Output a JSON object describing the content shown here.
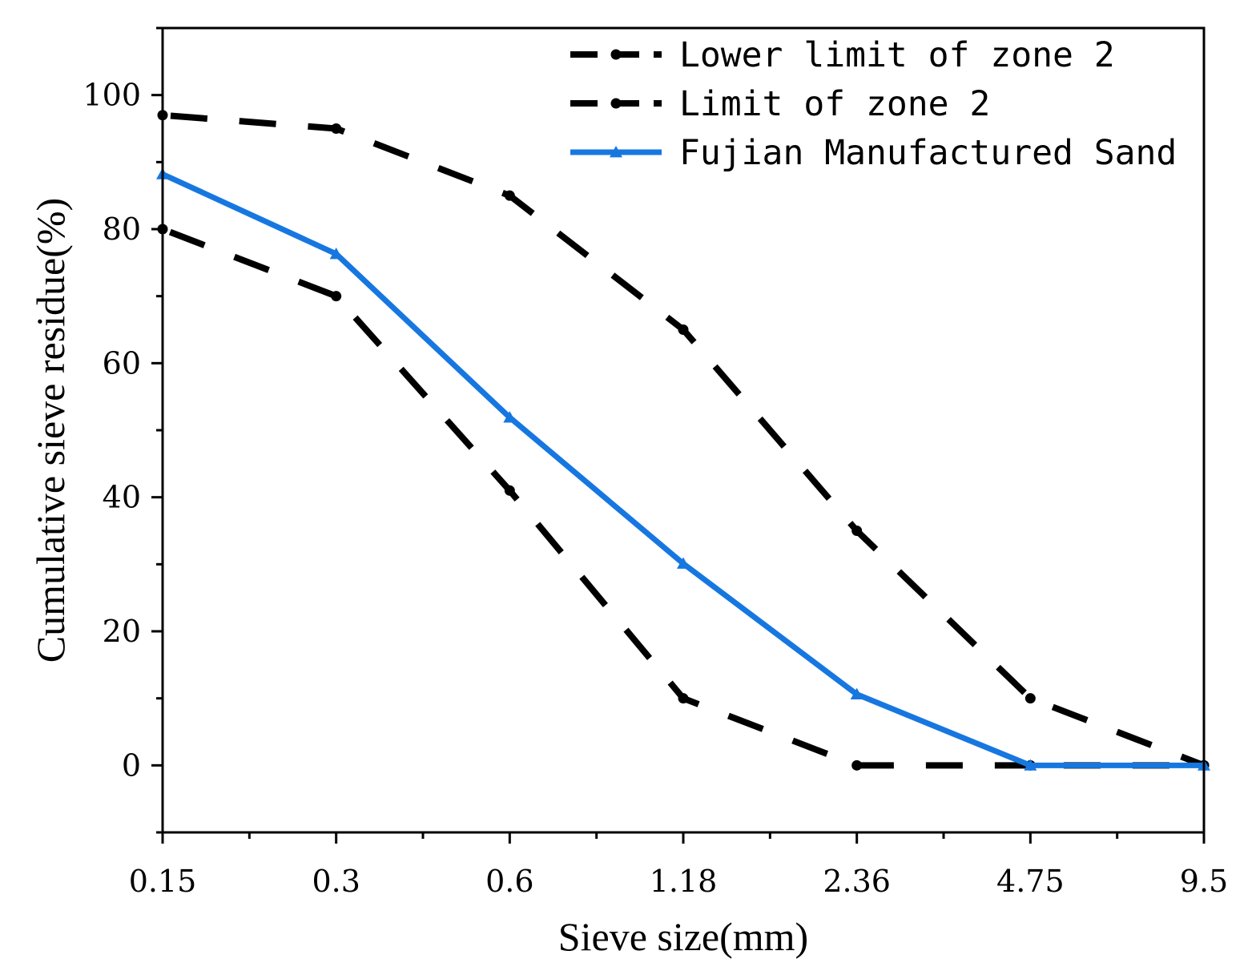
{
  "chart_data": {
    "type": "line",
    "title": "",
    "xlabel": "Sieve size(mm)",
    "ylabel": "Cumulative sieve residue(%)",
    "categories": [
      "0.15",
      "0.3",
      "0.6",
      "1.18",
      "2.36",
      "4.75",
      "9.5"
    ],
    "yticks": [
      0,
      20,
      40,
      60,
      80,
      100
    ],
    "ylim": [
      -10,
      110
    ],
    "grid": false,
    "legend_position": "top-right",
    "series": [
      {
        "name": "Lower limit of zone 2",
        "style": "dashed-dot",
        "marker": "circle",
        "color": "#000000",
        "values": [
          80,
          70,
          41,
          10,
          0,
          0,
          0
        ]
      },
      {
        "name": "Limit of zone 2",
        "style": "dashed-dot",
        "marker": "circle",
        "color": "#000000",
        "values": [
          97,
          95,
          85,
          65,
          35,
          10,
          0
        ]
      },
      {
        "name": "Fujian Manufactured Sand",
        "style": "solid",
        "marker": "triangle",
        "color": "#1777e0",
        "values": [
          88.2,
          76.3,
          51.9,
          30.1,
          10.6,
          0,
          0
        ]
      }
    ]
  }
}
